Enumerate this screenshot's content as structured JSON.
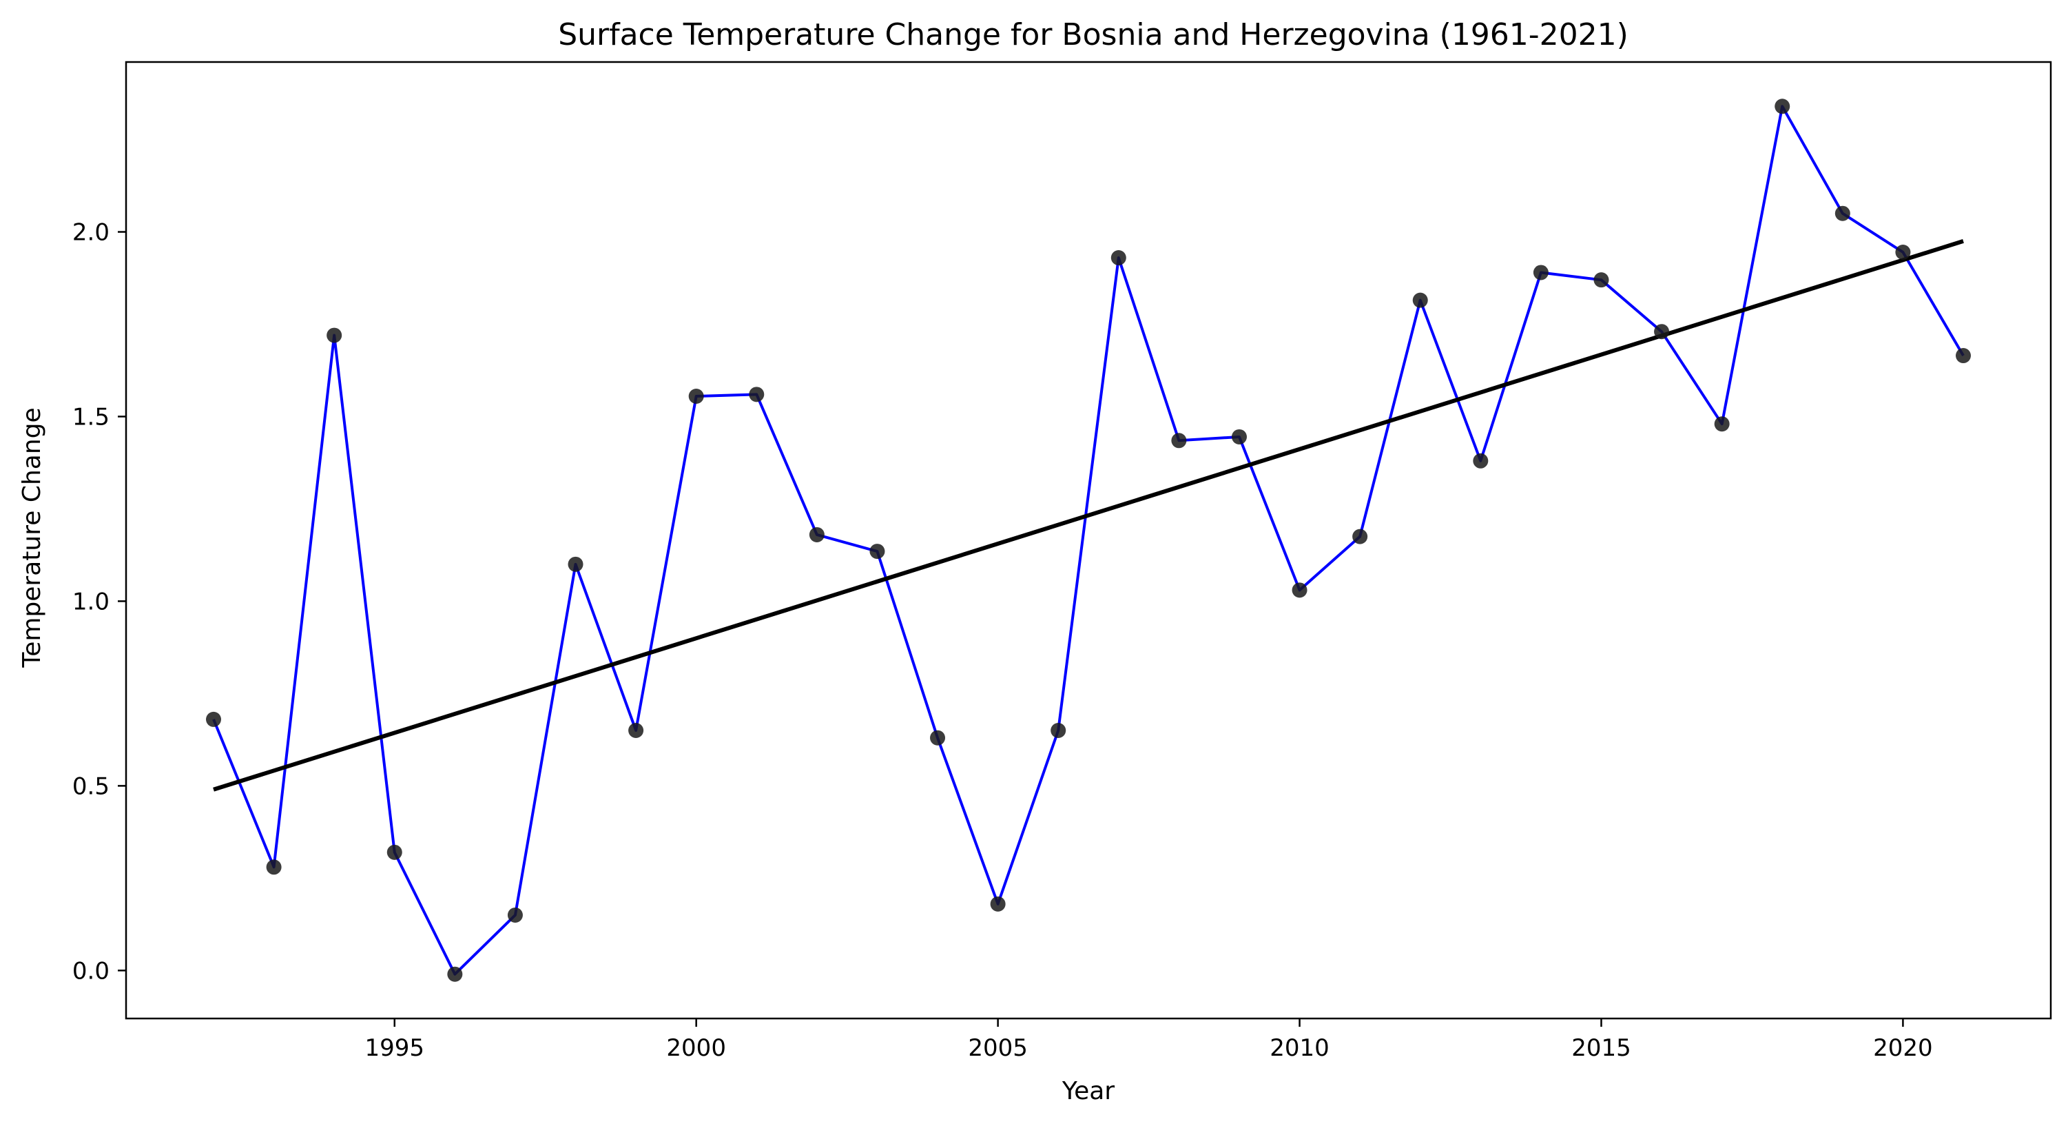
{
  "chart_data": {
    "type": "line",
    "title": "Surface Temperature Change for Bosnia and Herzegovina (1961-2021)",
    "xlabel": "Year",
    "ylabel": "Temperature Change",
    "xlim": [
      1990.55,
      2022.45
    ],
    "ylim": [
      -0.13,
      2.46
    ],
    "x_ticks": [
      1995,
      2000,
      2005,
      2010,
      2015,
      2020
    ],
    "y_ticks": [
      0.0,
      0.5,
      1.0,
      1.5,
      2.0
    ],
    "y_tick_labels": [
      "0.0",
      "0.5",
      "1.0",
      "1.5",
      "2.0"
    ],
    "grid": false,
    "series": [
      {
        "x": [
          1992,
          1993,
          1994,
          1995,
          1996,
          1997,
          1998,
          1999,
          2000,
          2001,
          2002,
          2003,
          2004,
          2005,
          2006,
          2007,
          2008,
          2009,
          2010,
          2011,
          2012,
          2013,
          2014,
          2015,
          2016,
          2017,
          2018,
          2019,
          2020,
          2021
        ],
        "values": [
          0.68,
          0.28,
          1.72,
          0.32,
          -0.01,
          0.15,
          1.1,
          0.65,
          1.555,
          1.56,
          1.18,
          1.135,
          0.63,
          0.18,
          0.65,
          1.93,
          1.435,
          1.445,
          1.03,
          1.175,
          1.815,
          1.38,
          1.89,
          1.87,
          1.73,
          1.48,
          2.34,
          2.05,
          1.945,
          1.665
        ],
        "line_color": "#0000ff",
        "marker_color": "#1a1a1a"
      }
    ],
    "trendline": {
      "x": [
        1992,
        2021
      ],
      "values": [
        0.49,
        1.975
      ],
      "color": "#000000"
    }
  }
}
